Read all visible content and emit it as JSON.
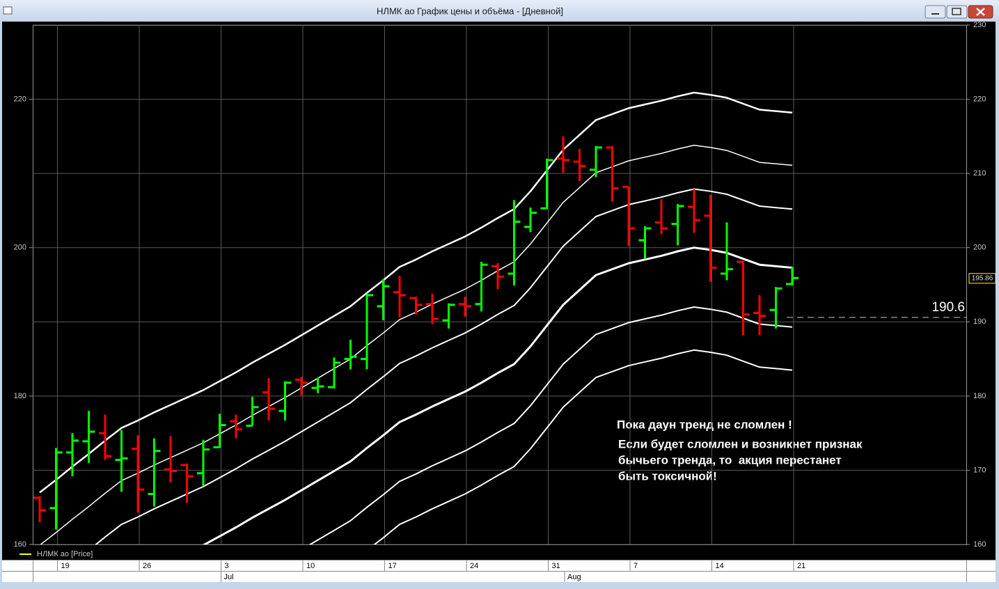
{
  "window": {
    "title": "НЛМК ао График цены и объёма - [Дневной]"
  },
  "chart_data": {
    "type": "ohlc",
    "categories": [
      null,
      "19",
      null,
      null,
      null,
      null,
      "26",
      null,
      null,
      null,
      null,
      "3",
      null,
      null,
      null,
      null,
      "10",
      null,
      null,
      null,
      null,
      "17",
      null,
      null,
      null,
      null,
      "24",
      null,
      null,
      null,
      null,
      "31",
      null,
      null,
      null,
      null,
      "7",
      null,
      null,
      null,
      null,
      "14",
      null,
      null,
      null,
      null,
      "21"
    ],
    "months": [
      null,
      null,
      null,
      null,
      null,
      null,
      null,
      null,
      null,
      null,
      null,
      "Jul",
      null,
      null,
      null,
      null,
      null,
      null,
      null,
      null,
      null,
      null,
      null,
      null,
      null,
      null,
      null,
      null,
      null,
      null,
      null,
      null,
      "Aug",
      null,
      null,
      null,
      null,
      null,
      null,
      null,
      null,
      null,
      null,
      null,
      null,
      null,
      null
    ],
    "ohlc": {
      "name": "НЛМК ао [Price]",
      "legend_color": "#ffff00",
      "up_color": "#00ff00",
      "down_color": "#ff0000",
      "open": [
        166.3,
        164.9,
        172.4,
        173.9,
        175.0,
        171.4,
        172.9,
        166.8,
        170.1,
        170.7,
        169.6,
        173.1,
        176.6,
        176.0,
        180.5,
        178.0,
        182.2,
        181.1,
        181.2,
        185.0,
        185.0,
        192.1,
        194.0,
        193.2,
        192.4,
        190.2,
        192.4,
        192.4,
        197.5,
        196.5,
        202.8,
        205.3,
        212.0,
        211.6,
        210.5,
        213.5,
        208.2,
        201.0,
        203.4,
        203.2,
        205.5,
        204.3,
        196.5,
        198.1,
        191.2,
        191.6,
        195.1
      ],
      "high": [
        166.5,
        173.0,
        175.0,
        178.0,
        177.5,
        175.4,
        174.7,
        174.3,
        174.6,
        170.9,
        174.1,
        177.6,
        177.5,
        179.9,
        182.4,
        182.0,
        182.6,
        182.5,
        185.2,
        187.6,
        193.8,
        195.8,
        196.2,
        193.4,
        193.8,
        192.5,
        193.4,
        198.1,
        197.9,
        206.4,
        205.4,
        212.0,
        215.0,
        213.3,
        213.7,
        213.7,
        208.2,
        202.9,
        206.5,
        205.9,
        207.9,
        207.1,
        203.4,
        198.2,
        193.6,
        194.7,
        197.4
      ],
      "low": [
        163.0,
        162.0,
        169.2,
        171.0,
        171.4,
        167.1,
        164.3,
        165.1,
        168.4,
        165.6,
        167.9,
        173.0,
        174.3,
        176.0,
        176.7,
        176.7,
        180.1,
        180.4,
        181.0,
        183.6,
        183.6,
        190.2,
        190.6,
        191.0,
        189.7,
        189.1,
        190.7,
        191.4,
        194.4,
        194.9,
        202.1,
        205.2,
        210.1,
        209.0,
        209.5,
        206.2,
        200.2,
        198.5,
        201.8,
        200.3,
        202.0,
        195.4,
        195.6,
        188.2,
        188.2,
        189.1,
        194.9
      ],
      "close": [
        164.6,
        172.4,
        174.0,
        175.2,
        171.9,
        171.6,
        167.4,
        172.6,
        169.9,
        169.2,
        172.8,
        176.1,
        175.5,
        178.5,
        178.3,
        181.8,
        181.8,
        181.3,
        184.5,
        185.3,
        193.6,
        194.8,
        193.6,
        192.3,
        190.4,
        192.3,
        192.1,
        197.7,
        196.1,
        203.5,
        204.7,
        211.8,
        211.8,
        211.0,
        213.5,
        208.0,
        202.6,
        202.6,
        202.6,
        205.6,
        203.7,
        197.3,
        197.1,
        191.0,
        190.8,
        194.5,
        195.9
      ]
    },
    "bands": [
      {
        "color": "#ffffff",
        "width": 2.5,
        "values": [
          167.0,
          168.7,
          170.5,
          172.2,
          174.0,
          175.7,
          176.7,
          177.8,
          178.8,
          179.8,
          180.8,
          182.0,
          183.2,
          184.5,
          185.7,
          186.9,
          188.2,
          189.5,
          190.8,
          192.1,
          193.9,
          195.6,
          197.4,
          198.4,
          199.5,
          200.5,
          201.5,
          202.7,
          204.0,
          205.2,
          207.6,
          210.4,
          213.2,
          215.2,
          217.2,
          218.0,
          218.8,
          219.3,
          219.8,
          220.4,
          220.9,
          220.6,
          220.2,
          219.4,
          218.6,
          218.4,
          218.2
        ]
      },
      {
        "color": "#ffffff",
        "width": 1.5,
        "values": [
          159.9,
          161.6,
          163.4,
          165.1,
          166.9,
          168.6,
          169.6,
          170.7,
          171.7,
          172.7,
          173.7,
          174.9,
          176.1,
          177.4,
          178.6,
          179.8,
          181.1,
          182.4,
          183.7,
          185.0,
          186.8,
          188.5,
          190.3,
          191.3,
          192.4,
          193.4,
          194.4,
          195.6,
          196.9,
          198.1,
          200.5,
          203.3,
          206.1,
          208.1,
          210.1,
          210.9,
          211.7,
          212.2,
          212.7,
          213.3,
          213.8,
          213.5,
          213.1,
          212.3,
          211.5,
          211.3,
          211.1
        ]
      },
      {
        "color": "#ffffff",
        "width": 2,
        "values": [
          null,
          null,
          null,
          159.2,
          161.0,
          162.7,
          163.7,
          164.8,
          165.8,
          166.8,
          167.8,
          169.0,
          170.2,
          171.5,
          172.7,
          173.9,
          175.2,
          176.5,
          177.8,
          179.1,
          180.9,
          182.6,
          184.4,
          185.4,
          186.5,
          187.5,
          188.5,
          189.7,
          191.0,
          192.2,
          194.6,
          197.4,
          200.2,
          202.2,
          204.2,
          205.0,
          205.8,
          206.3,
          206.8,
          207.4,
          207.9,
          207.6,
          207.2,
          206.4,
          205.6,
          205.4,
          205.2
        ]
      },
      {
        "color": "#ffffff",
        "width": 3,
        "values": [
          null,
          null,
          null,
          null,
          null,
          null,
          null,
          null,
          null,
          158.9,
          159.9,
          161.1,
          162.3,
          163.6,
          164.8,
          166.0,
          167.3,
          168.6,
          169.9,
          171.2,
          173.0,
          174.7,
          176.5,
          177.5,
          178.6,
          179.6,
          180.6,
          181.8,
          183.1,
          184.3,
          186.7,
          189.5,
          192.3,
          194.3,
          196.3,
          197.1,
          197.9,
          198.4,
          198.9,
          199.5,
          200.0,
          199.7,
          199.3,
          198.5,
          197.7,
          197.5,
          197.3
        ]
      },
      {
        "color": "#ffffff",
        "width": 2,
        "values": [
          null,
          null,
          null,
          null,
          null,
          null,
          null,
          null,
          null,
          null,
          null,
          null,
          null,
          null,
          null,
          null,
          159.3,
          160.6,
          161.9,
          163.2,
          165.0,
          166.7,
          168.5,
          169.5,
          170.6,
          171.6,
          172.6,
          173.8,
          175.1,
          176.3,
          178.7,
          181.5,
          184.3,
          186.3,
          188.3,
          189.1,
          189.9,
          190.4,
          190.9,
          191.5,
          192.0,
          191.7,
          191.3,
          190.5,
          189.7,
          189.5,
          189.3
        ]
      },
      {
        "color": "#ffffff",
        "width": 2,
        "values": [
          null,
          null,
          null,
          null,
          null,
          null,
          null,
          null,
          null,
          null,
          null,
          null,
          null,
          null,
          null,
          null,
          null,
          null,
          null,
          null,
          159.2,
          160.9,
          162.7,
          163.7,
          164.8,
          165.8,
          166.8,
          168.0,
          169.3,
          170.5,
          172.9,
          175.7,
          178.5,
          180.5,
          182.5,
          183.3,
          184.1,
          184.6,
          185.1,
          185.7,
          186.2,
          185.9,
          185.5,
          184.7,
          183.9,
          183.7,
          183.5
        ]
      }
    ],
    "ylim": [
      160,
      230
    ],
    "yticks": [
      160,
      170,
      180,
      190,
      200,
      210,
      220,
      230
    ],
    "left_yticks": [
      160,
      180,
      200,
      220
    ],
    "grid": true,
    "last_price": 195.86,
    "level": 190.6,
    "annotations": [
      "Пока даун тренд не сломлен !",
      "Если будет сломлен и возникнет признак",
      "бычьего тренда, то  акция перестанет",
      "быть токсичной!"
    ]
  }
}
